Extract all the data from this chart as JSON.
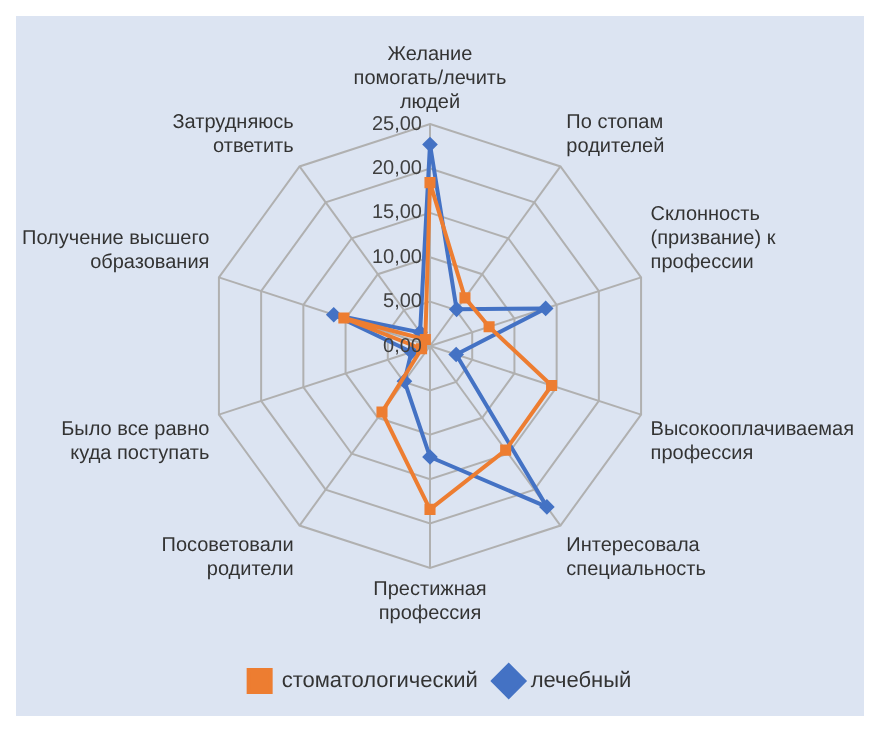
{
  "chart_data": {
    "type": "radar",
    "categories": [
      "Желание помогать/лечить людей",
      "По стопам родителей",
      "Склонность (призвание) к профессии",
      "Высокооплачиваемая профессия",
      "Интересовала специальность",
      "Престижная профессия",
      "Посоветовали родители",
      "Было все равно куда поступать",
      "Получение высшего образования",
      "Затрудняюсь ответить"
    ],
    "series": [
      {
        "name": "лечебный",
        "color": "#4472c4",
        "marker": "diamond",
        "values": [
          22.7,
          5.1,
          13.7,
          3.1,
          22.4,
          12.5,
          4.9,
          2.2,
          11.4,
          1.9
        ]
      },
      {
        "name": "стоматологический",
        "color": "#ed7d31",
        "marker": "square",
        "values": [
          18.4,
          6.7,
          7.0,
          14.4,
          14.5,
          18.4,
          9.2,
          1.0,
          10.2,
          0.9
        ]
      }
    ],
    "ylim": [
      0,
      25
    ],
    "yticks": [
      {
        "value": 0,
        "label": "0,00"
      },
      {
        "value": 5,
        "label": "5,00"
      },
      {
        "value": 10,
        "label": "10,00"
      },
      {
        "value": 15,
        "label": "15,00"
      },
      {
        "value": 20,
        "label": "20,00"
      },
      {
        "value": 25,
        "label": "25,00"
      }
    ],
    "grid": true,
    "legend": "bottom"
  }
}
